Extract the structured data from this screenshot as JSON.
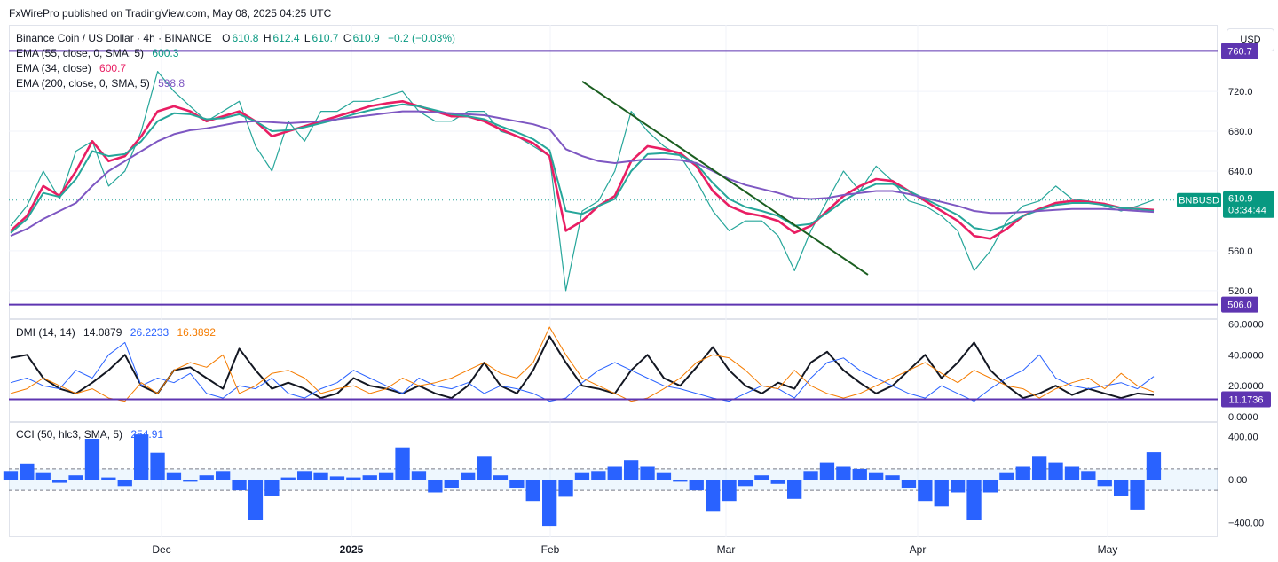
{
  "header": {
    "publisher": "FxWirePro published on TradingView.com, May 08, 2025 04:25 UTC"
  },
  "currency_button": "USD",
  "main_legend": {
    "symbol": "Binance Coin / US Dollar · 4h · BINANCE",
    "open_label": "O",
    "open": "610.8",
    "high_label": "H",
    "high": "612.4",
    "low_label": "L",
    "low": "610.7",
    "close_label": "C",
    "close": "610.9",
    "change": "−0.2 (−0.03%)",
    "ema55_label": "EMA (55, close, 0, SMA, 5)",
    "ema55_value": "600.3",
    "ema34_label": "EMA (34, close)",
    "ema34_value": "600.7",
    "ema200_label": "EMA (200, close, 0, SMA, 5)",
    "ema200_value": "598.8"
  },
  "dmi_legend": {
    "label": "DMI (14, 14)",
    "adx": "14.0879",
    "plus_di": "26.2233",
    "minus_di": "16.3892"
  },
  "cci_legend": {
    "label": "CCI (50, hlc3, SMA, 5)",
    "value": "254.91"
  },
  "price_tag": {
    "symbol": "BNBUSD",
    "price": "610.9",
    "countdown": "03:34:44"
  },
  "colors": {
    "price_candles": "#26a69a",
    "ema34": "#e91e63",
    "ema55": "#26a69a",
    "ema200": "#7e57c2",
    "hline": "#5e35b1",
    "trendline": "#1b5e20",
    "adx": "#131722",
    "plus_di": "#2962ff",
    "minus_di": "#f57c00",
    "cci": "#2962ff"
  },
  "chart_data": [
    {
      "type": "line",
      "name": "price",
      "x_labels": [
        "Dec",
        "2025",
        "Feb",
        "Mar",
        "Apr",
        "May"
      ],
      "y_ticks": [
        "720.0",
        "680.0",
        "640.0",
        "560.0",
        "520.0"
      ],
      "ylim": [
        495,
        785
      ],
      "hlines": [
        {
          "value": 760.7,
          "label": "760.7"
        },
        {
          "value": 506.0,
          "label": "506.0"
        }
      ],
      "trendline": {
        "from": [
          0.5,
          730
        ],
        "to": [
          0.75,
          536
        ]
      },
      "series": [
        {
          "name": "BNBUSD",
          "values": [
            585,
            605,
            640,
            612,
            660,
            670,
            625,
            640,
            680,
            740,
            720,
            705,
            690,
            700,
            710,
            665,
            640,
            690,
            670,
            700,
            700,
            710,
            710,
            715,
            720,
            700,
            690,
            690,
            700,
            700,
            680,
            675,
            665,
            655,
            520,
            600,
            610,
            640,
            700,
            680,
            665,
            655,
            630,
            600,
            580,
            590,
            590,
            575,
            540,
            580,
            610,
            640,
            620,
            645,
            630,
            610,
            605,
            595,
            580,
            540,
            560,
            590,
            605,
            610,
            625,
            612,
            610,
            605,
            600,
            605,
            611
          ]
        },
        {
          "name": "EMA (34, close)",
          "values": [
            580,
            595,
            625,
            615,
            640,
            670,
            650,
            655,
            675,
            700,
            705,
            700,
            690,
            695,
            700,
            690,
            675,
            680,
            685,
            690,
            695,
            700,
            705,
            708,
            710,
            705,
            700,
            695,
            695,
            690,
            682,
            675,
            668,
            655,
            580,
            590,
            605,
            615,
            650,
            665,
            662,
            658,
            645,
            620,
            605,
            598,
            595,
            590,
            578,
            585,
            600,
            615,
            625,
            632,
            630,
            620,
            610,
            600,
            590,
            575,
            572,
            582,
            595,
            602,
            608,
            610,
            609,
            607,
            603,
            602,
            601
          ]
        },
        {
          "name": "EMA (55, close, 0, SMA, 5)",
          "values": [
            578,
            592,
            618,
            614,
            632,
            660,
            655,
            657,
            670,
            690,
            698,
            697,
            692,
            693,
            697,
            690,
            680,
            681,
            684,
            688,
            692,
            697,
            701,
            704,
            707,
            705,
            701,
            697,
            695,
            692,
            685,
            679,
            672,
            661,
            600,
            597,
            605,
            612,
            640,
            657,
            658,
            656,
            647,
            628,
            612,
            604,
            600,
            595,
            585,
            587,
            598,
            610,
            620,
            627,
            627,
            620,
            612,
            604,
            596,
            583,
            580,
            586,
            595,
            601,
            606,
            608,
            608,
            606,
            603,
            602,
            600
          ]
        },
        {
          "name": "EMA (200, close, 0, SMA, 5)",
          "values": [
            575,
            582,
            592,
            600,
            608,
            625,
            640,
            650,
            660,
            670,
            677,
            681,
            683,
            686,
            689,
            690,
            689,
            688,
            689,
            690,
            692,
            694,
            696,
            698,
            700,
            700,
            699,
            698,
            697,
            696,
            693,
            690,
            687,
            682,
            662,
            655,
            650,
            648,
            650,
            652,
            652,
            651,
            648,
            640,
            632,
            626,
            622,
            618,
            613,
            612,
            613,
            616,
            618,
            620,
            620,
            617,
            613,
            609,
            605,
            600,
            598,
            598,
            599,
            600,
            601,
            602,
            602,
            602,
            601,
            600,
            599
          ]
        }
      ]
    },
    {
      "type": "line",
      "name": "DMI (14, 14)",
      "y_ticks": [
        "60.0000",
        "40.0000",
        "20.0000",
        "0.0000"
      ],
      "ylim": [
        0,
        62
      ],
      "hline": {
        "value": 11.1736,
        "label": "11.1736"
      },
      "series": [
        {
          "name": "ADX",
          "values": [
            38,
            40,
            25,
            18,
            15,
            22,
            30,
            40,
            20,
            15,
            30,
            32,
            25,
            18,
            44,
            30,
            18,
            22,
            18,
            12,
            15,
            25,
            20,
            18,
            15,
            20,
            15,
            12,
            20,
            35,
            20,
            15,
            30,
            52,
            35,
            20,
            18,
            15,
            30,
            40,
            25,
            20,
            32,
            45,
            30,
            20,
            15,
            22,
            18,
            35,
            42,
            30,
            22,
            15,
            20,
            30,
            40,
            25,
            35,
            48,
            30,
            20,
            12,
            15,
            20,
            14,
            18,
            15,
            12,
            15,
            14
          ]
        },
        {
          "name": "+DI",
          "values": [
            22,
            25,
            20,
            18,
            30,
            25,
            40,
            48,
            20,
            25,
            22,
            28,
            15,
            12,
            20,
            18,
            25,
            15,
            12,
            18,
            22,
            30,
            25,
            20,
            15,
            25,
            20,
            18,
            22,
            15,
            20,
            18,
            15,
            10,
            12,
            22,
            30,
            35,
            30,
            25,
            20,
            18,
            15,
            12,
            10,
            15,
            20,
            18,
            12,
            25,
            35,
            38,
            30,
            25,
            20,
            15,
            12,
            20,
            15,
            10,
            18,
            25,
            30,
            40,
            25,
            20,
            18,
            20,
            22,
            18,
            26
          ]
        },
        {
          "name": "-DI",
          "values": [
            15,
            18,
            25,
            20,
            15,
            18,
            12,
            10,
            22,
            15,
            30,
            35,
            32,
            40,
            15,
            20,
            28,
            30,
            25,
            15,
            18,
            20,
            15,
            18,
            25,
            20,
            22,
            25,
            30,
            35,
            28,
            25,
            35,
            58,
            40,
            25,
            20,
            15,
            10,
            12,
            18,
            25,
            35,
            40,
            38,
            30,
            20,
            18,
            30,
            20,
            15,
            12,
            15,
            20,
            25,
            30,
            35,
            28,
            22,
            30,
            25,
            20,
            18,
            12,
            18,
            22,
            25,
            18,
            28,
            20,
            16
          ]
        }
      ]
    },
    {
      "type": "bar",
      "name": "CCI (50, hlc3, SMA, 5)",
      "y_ticks": [
        "400.00",
        "0.00",
        "−400.00"
      ],
      "ylim": [
        -520,
        520
      ],
      "bands": [
        100,
        -100
      ],
      "values": [
        80,
        150,
        60,
        -30,
        40,
        380,
        20,
        -60,
        420,
        250,
        60,
        -20,
        40,
        80,
        -100,
        -380,
        -150,
        20,
        80,
        60,
        30,
        20,
        40,
        60,
        300,
        80,
        -120,
        -80,
        60,
        220,
        40,
        -80,
        -200,
        -430,
        -160,
        60,
        80,
        120,
        180,
        120,
        60,
        -20,
        -100,
        -300,
        -200,
        -60,
        40,
        -40,
        -180,
        80,
        160,
        120,
        100,
        60,
        40,
        -80,
        -200,
        -250,
        -120,
        -380,
        -120,
        60,
        120,
        220,
        160,
        120,
        80,
        -60,
        -150,
        -280,
        254.91
      ]
    }
  ]
}
